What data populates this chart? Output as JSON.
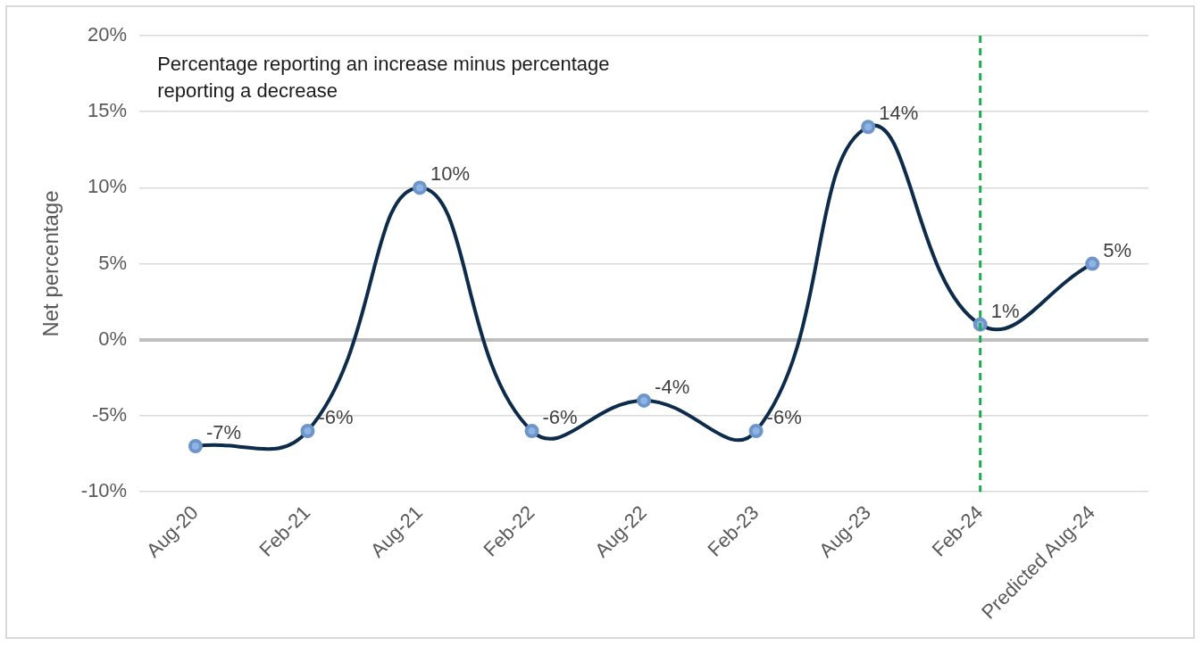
{
  "chart_data": {
    "type": "line",
    "ylabel": "Net percentage",
    "annotations": [
      "Percentage reporting an increase minus percentage reporting a decrease"
    ],
    "categories": [
      "Aug-20",
      "Feb-21",
      "Aug-21",
      "Feb-22",
      "Aug-22",
      "Feb-23",
      "Aug-23",
      "Feb-24",
      "Predicted Aug-24"
    ],
    "series": [
      {
        "color": "#0d2b4a",
        "values": [
          -7,
          -6,
          10,
          -6,
          -4,
          -6,
          14,
          1,
          5
        ],
        "value_labels": [
          "-7%",
          "-6%",
          "10%",
          "-6%",
          "-4%",
          "-6%",
          "14%",
          "1%",
          "5%"
        ]
      }
    ],
    "ylim": [
      -10,
      20
    ],
    "yticks": [
      {
        "value": -10,
        "label": "-10%"
      },
      {
        "value": -5,
        "label": "-5%"
      },
      {
        "value": 0,
        "label": "0%"
      },
      {
        "value": 5,
        "label": "5%"
      },
      {
        "value": 10,
        "label": "10%"
      },
      {
        "value": 15,
        "label": "15%"
      },
      {
        "value": 20,
        "label": "20%"
      }
    ],
    "ref_lines": [
      {
        "axis": "x",
        "value": "Feb-24",
        "color": "#1eaa50",
        "line_style": "dashed"
      }
    ],
    "grid": "y",
    "legend": false,
    "marker": "circle"
  }
}
